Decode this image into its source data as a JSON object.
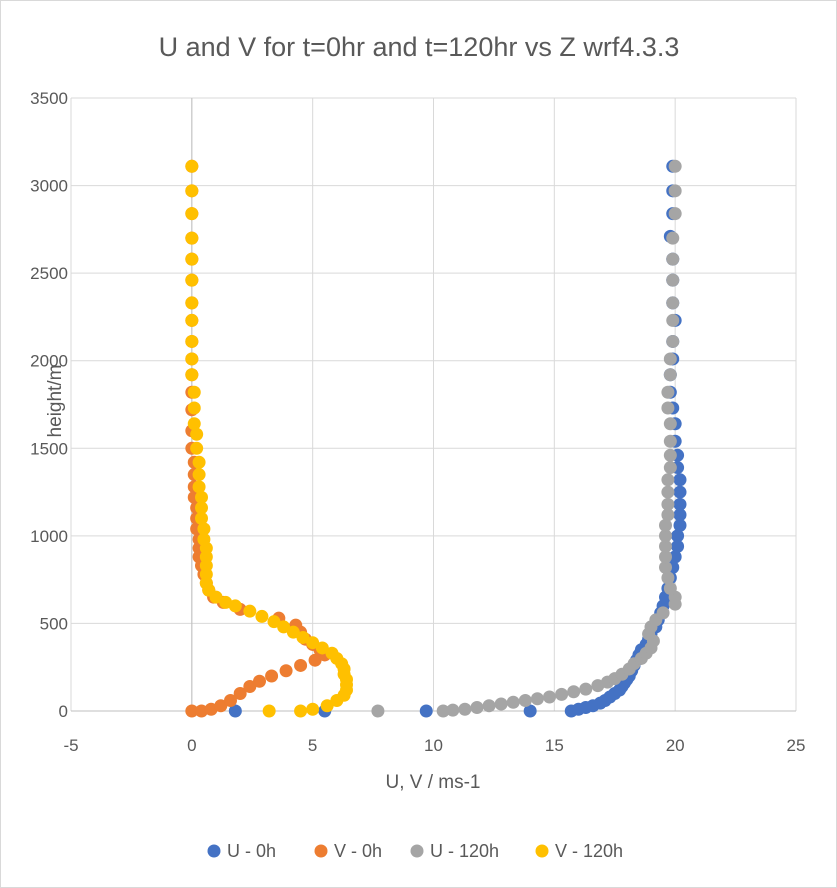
{
  "chart_data": {
    "type": "scatter",
    "title": "U and V for t=0hr and t=120hr vs Z wrf4.3.3",
    "xlabel": "U, V / ms-1",
    "ylabel": "height/m",
    "xlim": [
      -5,
      25
    ],
    "ylim": [
      0,
      3500
    ],
    "xticks": [
      -5,
      0,
      5,
      10,
      15,
      20,
      25
    ],
    "yticks": [
      0,
      500,
      1000,
      1500,
      2000,
      2500,
      3000,
      3500
    ],
    "grid": true,
    "legend_position": "bottom",
    "series": [
      {
        "name": "U - 0h",
        "color": "#4472C4",
        "points": [
          [
            1.8,
            0
          ],
          [
            5.5,
            0
          ],
          [
            9.7,
            0
          ],
          [
            14.0,
            0
          ],
          [
            15.7,
            0
          ],
          [
            16.0,
            10
          ],
          [
            16.3,
            20
          ],
          [
            16.6,
            30
          ],
          [
            16.9,
            45
          ],
          [
            17.1,
            60
          ],
          [
            17.3,
            80
          ],
          [
            17.5,
            100
          ],
          [
            17.7,
            120
          ],
          [
            17.8,
            140
          ],
          [
            17.9,
            160
          ],
          [
            18.0,
            180
          ],
          [
            18.1,
            200
          ],
          [
            18.2,
            230
          ],
          [
            18.3,
            260
          ],
          [
            18.4,
            290
          ],
          [
            18.5,
            320
          ],
          [
            18.6,
            350
          ],
          [
            18.8,
            380
          ],
          [
            18.9,
            410
          ],
          [
            19.0,
            440
          ],
          [
            19.2,
            480
          ],
          [
            19.3,
            520
          ],
          [
            19.4,
            560
          ],
          [
            19.5,
            600
          ],
          [
            19.6,
            650
          ],
          [
            19.7,
            700
          ],
          [
            19.8,
            760
          ],
          [
            19.9,
            820
          ],
          [
            20.0,
            880
          ],
          [
            20.1,
            940
          ],
          [
            20.1,
            1000
          ],
          [
            20.2,
            1060
          ],
          [
            20.2,
            1120
          ],
          [
            20.2,
            1180
          ],
          [
            20.2,
            1250
          ],
          [
            20.2,
            1320
          ],
          [
            20.1,
            1390
          ],
          [
            20.1,
            1460
          ],
          [
            20.0,
            1540
          ],
          [
            20.0,
            1640
          ],
          [
            19.9,
            1730
          ],
          [
            19.8,
            1820
          ],
          [
            19.8,
            1920
          ],
          [
            19.9,
            2010
          ],
          [
            19.9,
            2110
          ],
          [
            20.0,
            2230
          ],
          [
            19.9,
            2330
          ],
          [
            19.9,
            2460
          ],
          [
            19.9,
            2580
          ],
          [
            19.8,
            2710
          ],
          [
            19.9,
            2840
          ],
          [
            19.9,
            2970
          ],
          [
            19.9,
            3110
          ]
        ]
      },
      {
        "name": "V - 0h",
        "color": "#ED7D31",
        "points": [
          [
            0.0,
            0
          ],
          [
            0.4,
            0
          ],
          [
            0.8,
            10
          ],
          [
            1.2,
            30
          ],
          [
            1.6,
            60
          ],
          [
            2.0,
            100
          ],
          [
            2.4,
            140
          ],
          [
            2.8,
            170
          ],
          [
            3.3,
            200
          ],
          [
            3.9,
            230
          ],
          [
            4.5,
            260
          ],
          [
            5.1,
            290
          ],
          [
            5.5,
            320
          ],
          [
            5.3,
            350
          ],
          [
            5.0,
            380
          ],
          [
            4.7,
            410
          ],
          [
            4.5,
            450
          ],
          [
            4.3,
            490
          ],
          [
            3.6,
            530
          ],
          [
            2.0,
            580
          ],
          [
            1.3,
            620
          ],
          [
            0.9,
            650
          ],
          [
            0.7,
            690
          ],
          [
            0.6,
            730
          ],
          [
            0.5,
            780
          ],
          [
            0.4,
            830
          ],
          [
            0.3,
            880
          ],
          [
            0.3,
            930
          ],
          [
            0.3,
            980
          ],
          [
            0.2,
            1040
          ],
          [
            0.2,
            1100
          ],
          [
            0.2,
            1160
          ],
          [
            0.1,
            1220
          ],
          [
            0.1,
            1280
          ],
          [
            0.1,
            1350
          ],
          [
            0.1,
            1420
          ],
          [
            0.0,
            1500
          ],
          [
            0.0,
            1600
          ],
          [
            0.0,
            1720
          ],
          [
            0.0,
            1820
          ],
          [
            0.0,
            1920
          ],
          [
            0.0,
            2010
          ],
          [
            0.0,
            2110
          ],
          [
            0.0,
            2230
          ],
          [
            0.0,
            2330
          ],
          [
            0.0,
            2460
          ],
          [
            0.0,
            2580
          ],
          [
            0.0,
            2700
          ],
          [
            0.0,
            2840
          ],
          [
            0.0,
            2970
          ],
          [
            0.0,
            3110
          ]
        ]
      },
      {
        "name": "U - 120h",
        "color": "#A5A5A5",
        "points": [
          [
            7.7,
            0
          ],
          [
            10.4,
            0
          ],
          [
            10.8,
            5
          ],
          [
            11.3,
            10
          ],
          [
            11.8,
            20
          ],
          [
            12.3,
            30
          ],
          [
            12.8,
            40
          ],
          [
            13.3,
            50
          ],
          [
            13.8,
            60
          ],
          [
            14.3,
            70
          ],
          [
            14.8,
            80
          ],
          [
            15.3,
            95
          ],
          [
            15.8,
            110
          ],
          [
            16.3,
            125
          ],
          [
            16.8,
            145
          ],
          [
            17.2,
            165
          ],
          [
            17.5,
            185
          ],
          [
            17.8,
            210
          ],
          [
            18.1,
            240
          ],
          [
            18.3,
            270
          ],
          [
            18.6,
            300
          ],
          [
            18.8,
            330
          ],
          [
            19.0,
            360
          ],
          [
            19.1,
            400
          ],
          [
            18.9,
            440
          ],
          [
            19.0,
            480
          ],
          [
            19.2,
            520
          ],
          [
            19.5,
            560
          ],
          [
            20.0,
            610
          ],
          [
            20.0,
            650
          ],
          [
            19.8,
            700
          ],
          [
            19.7,
            760
          ],
          [
            19.6,
            820
          ],
          [
            19.6,
            880
          ],
          [
            19.6,
            940
          ],
          [
            19.6,
            1000
          ],
          [
            19.6,
            1060
          ],
          [
            19.7,
            1120
          ],
          [
            19.7,
            1180
          ],
          [
            19.7,
            1250
          ],
          [
            19.7,
            1320
          ],
          [
            19.8,
            1390
          ],
          [
            19.8,
            1460
          ],
          [
            19.8,
            1540
          ],
          [
            19.8,
            1640
          ],
          [
            19.7,
            1730
          ],
          [
            19.7,
            1820
          ],
          [
            19.8,
            1920
          ],
          [
            19.8,
            2010
          ],
          [
            19.9,
            2110
          ],
          [
            19.9,
            2230
          ],
          [
            19.9,
            2330
          ],
          [
            19.9,
            2460
          ],
          [
            19.9,
            2580
          ],
          [
            19.9,
            2700
          ],
          [
            20.0,
            2840
          ],
          [
            20.0,
            2970
          ],
          [
            20.0,
            3110
          ]
        ]
      },
      {
        "name": "V - 120h",
        "color": "#FFC000",
        "points": [
          [
            3.2,
            0
          ],
          [
            4.5,
            0
          ],
          [
            5.0,
            10
          ],
          [
            5.6,
            30
          ],
          [
            6.0,
            60
          ],
          [
            6.3,
            90
          ],
          [
            6.4,
            120
          ],
          [
            6.4,
            150
          ],
          [
            6.4,
            180
          ],
          [
            6.3,
            210
          ],
          [
            6.3,
            240
          ],
          [
            6.2,
            270
          ],
          [
            6.0,
            300
          ],
          [
            5.8,
            330
          ],
          [
            5.4,
            360
          ],
          [
            5.0,
            390
          ],
          [
            4.6,
            420
          ],
          [
            4.2,
            450
          ],
          [
            3.8,
            480
          ],
          [
            3.4,
            510
          ],
          [
            2.9,
            540
          ],
          [
            2.4,
            570
          ],
          [
            1.8,
            600
          ],
          [
            1.4,
            620
          ],
          [
            1.0,
            650
          ],
          [
            0.7,
            690
          ],
          [
            0.6,
            730
          ],
          [
            0.6,
            780
          ],
          [
            0.6,
            830
          ],
          [
            0.6,
            880
          ],
          [
            0.6,
            930
          ],
          [
            0.5,
            980
          ],
          [
            0.5,
            1040
          ],
          [
            0.4,
            1100
          ],
          [
            0.4,
            1160
          ],
          [
            0.4,
            1220
          ],
          [
            0.3,
            1280
          ],
          [
            0.3,
            1350
          ],
          [
            0.3,
            1420
          ],
          [
            0.2,
            1500
          ],
          [
            0.2,
            1580
          ],
          [
            0.1,
            1640
          ],
          [
            0.1,
            1730
          ],
          [
            0.1,
            1820
          ],
          [
            0.0,
            1920
          ],
          [
            0.0,
            2010
          ],
          [
            0.0,
            2110
          ],
          [
            0.0,
            2230
          ],
          [
            0.0,
            2330
          ],
          [
            0.0,
            2460
          ],
          [
            0.0,
            2580
          ],
          [
            0.0,
            2700
          ],
          [
            0.0,
            2840
          ],
          [
            0.0,
            2970
          ],
          [
            0.0,
            3110
          ]
        ]
      }
    ]
  }
}
